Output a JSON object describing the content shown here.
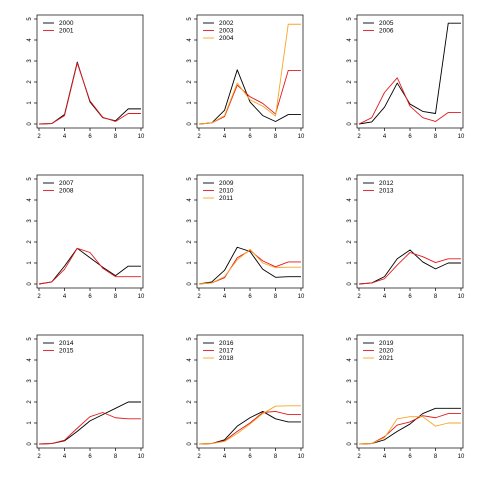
{
  "chart_data": [
    {
      "type": "line",
      "x": [
        2,
        3,
        4,
        5,
        6,
        7,
        8,
        9,
        10
      ],
      "ylim": [
        0,
        5
      ],
      "xticks": [
        2,
        4,
        6,
        8,
        10
      ],
      "yticks": [
        0,
        1,
        2,
        3,
        4,
        5
      ],
      "series": [
        {
          "name": "2000",
          "color": "#000000",
          "values": [
            0,
            0.02,
            0.45,
            2.95,
            1.05,
            0.3,
            0.15,
            0.72,
            0.72
          ]
        },
        {
          "name": "2001",
          "color": "#e41a1c",
          "values": [
            0,
            0.02,
            0.4,
            2.9,
            1.1,
            0.32,
            0.12,
            0.5,
            0.5
          ]
        }
      ]
    },
    {
      "type": "line",
      "x": [
        2,
        3,
        4,
        5,
        6,
        7,
        8,
        9,
        10
      ],
      "ylim": [
        0,
        5
      ],
      "xticks": [
        2,
        4,
        6,
        8,
        10
      ],
      "yticks": [
        0,
        1,
        2,
        3,
        4,
        5
      ],
      "series": [
        {
          "name": "2002",
          "color": "#000000",
          "values": [
            0,
            0.05,
            0.65,
            2.58,
            1.05,
            0.4,
            0.12,
            0.45,
            0.45
          ]
        },
        {
          "name": "2003",
          "color": "#e41a1c",
          "values": [
            0,
            0.05,
            0.35,
            1.85,
            1.3,
            0.98,
            0.48,
            2.55,
            2.55
          ]
        },
        {
          "name": "2004",
          "color": "#f5a623",
          "values": [
            0,
            0.05,
            0.4,
            1.95,
            1.15,
            0.85,
            0.38,
            4.75,
            4.75
          ]
        }
      ]
    },
    {
      "type": "line",
      "x": [
        2,
        3,
        4,
        5,
        6,
        7,
        8,
        9,
        10
      ],
      "ylim": [
        0,
        5
      ],
      "xticks": [
        2,
        4,
        6,
        8,
        10
      ],
      "yticks": [
        0,
        1,
        2,
        3,
        4,
        5
      ],
      "series": [
        {
          "name": "2005",
          "color": "#000000",
          "values": [
            0,
            0.1,
            0.8,
            1.95,
            0.95,
            0.6,
            0.5,
            4.8,
            4.8
          ]
        },
        {
          "name": "2006",
          "color": "#e41a1c",
          "values": [
            0,
            0.3,
            1.5,
            2.2,
            0.85,
            0.3,
            0.12,
            0.55,
            0.55
          ]
        }
      ]
    },
    {
      "type": "line",
      "x": [
        2,
        3,
        4,
        5,
        6,
        7,
        8,
        9,
        10
      ],
      "ylim": [
        0,
        5
      ],
      "xticks": [
        2,
        4,
        6,
        8,
        10
      ],
      "yticks": [
        0,
        1,
        2,
        3,
        4,
        5
      ],
      "series": [
        {
          "name": "2007",
          "color": "#000000",
          "values": [
            0,
            0.1,
            0.85,
            1.7,
            1.25,
            0.8,
            0.4,
            0.85,
            0.85
          ]
        },
        {
          "name": "2008",
          "color": "#e41a1c",
          "values": [
            0,
            0.1,
            0.7,
            1.7,
            1.5,
            0.75,
            0.35,
            0.35,
            0.35
          ]
        }
      ]
    },
    {
      "type": "line",
      "x": [
        2,
        3,
        4,
        5,
        6,
        7,
        8,
        9,
        10
      ],
      "ylim": [
        0,
        5
      ],
      "xticks": [
        2,
        4,
        6,
        8,
        10
      ],
      "yticks": [
        0,
        1,
        2,
        3,
        4,
        5
      ],
      "series": [
        {
          "name": "2009",
          "color": "#000000",
          "values": [
            0,
            0.1,
            0.65,
            1.75,
            1.55,
            0.7,
            0.32,
            0.35,
            0.35
          ]
        },
        {
          "name": "2010",
          "color": "#e41a1c",
          "values": [
            0,
            0.05,
            0.3,
            1.25,
            1.6,
            1.1,
            0.82,
            1.05,
            1.05
          ]
        },
        {
          "name": "2011",
          "color": "#f5a623",
          "values": [
            0,
            0.05,
            0.35,
            1.15,
            1.65,
            1.0,
            0.78,
            0.8,
            0.8
          ]
        }
      ]
    },
    {
      "type": "line",
      "x": [
        2,
        3,
        4,
        5,
        6,
        7,
        8,
        9,
        10
      ],
      "ylim": [
        0,
        5
      ],
      "xticks": [
        2,
        4,
        6,
        8,
        10
      ],
      "yticks": [
        0,
        1,
        2,
        3,
        4,
        5
      ],
      "series": [
        {
          "name": "2012",
          "color": "#000000",
          "values": [
            0,
            0.05,
            0.35,
            1.2,
            1.62,
            1.05,
            0.72,
            1.0,
            1.0
          ]
        },
        {
          "name": "2013",
          "color": "#e41a1c",
          "values": [
            0,
            0.05,
            0.25,
            0.9,
            1.5,
            1.3,
            1.02,
            1.2,
            1.2
          ]
        }
      ]
    },
    {
      "type": "line",
      "x": [
        2,
        3,
        4,
        5,
        6,
        7,
        8,
        9,
        10
      ],
      "ylim": [
        0,
        5
      ],
      "xticks": [
        2,
        4,
        6,
        8,
        10
      ],
      "yticks": [
        0,
        1,
        2,
        3,
        4,
        5
      ],
      "series": [
        {
          "name": "2014",
          "color": "#000000",
          "values": [
            0,
            0.02,
            0.15,
            0.6,
            1.1,
            1.4,
            1.7,
            2.0,
            2.0
          ]
        },
        {
          "name": "2015",
          "color": "#e41a1c",
          "values": [
            0,
            0.02,
            0.18,
            0.75,
            1.3,
            1.5,
            1.25,
            1.2,
            1.2
          ]
        }
      ]
    },
    {
      "type": "line",
      "x": [
        2,
        3,
        4,
        5,
        6,
        7,
        8,
        9,
        10
      ],
      "ylim": [
        0,
        5
      ],
      "xticks": [
        2,
        4,
        6,
        8,
        10
      ],
      "yticks": [
        0,
        1,
        2,
        3,
        4,
        5
      ],
      "series": [
        {
          "name": "2016",
          "color": "#000000",
          "values": [
            0,
            0.02,
            0.2,
            0.85,
            1.25,
            1.55,
            1.2,
            1.05,
            1.05
          ]
        },
        {
          "name": "2017",
          "color": "#e41a1c",
          "values": [
            0,
            0.02,
            0.15,
            0.6,
            1.0,
            1.5,
            1.55,
            1.4,
            1.4
          ]
        },
        {
          "name": "2018",
          "color": "#f5a623",
          "values": [
            0,
            0.02,
            0.12,
            0.5,
            0.95,
            1.45,
            1.8,
            1.82,
            1.82
          ]
        }
      ]
    },
    {
      "type": "line",
      "x": [
        2,
        3,
        4,
        5,
        6,
        7,
        8,
        9,
        10
      ],
      "ylim": [
        0,
        5
      ],
      "xticks": [
        2,
        4,
        6,
        8,
        10
      ],
      "yticks": [
        0,
        1,
        2,
        3,
        4,
        5
      ],
      "series": [
        {
          "name": "2019",
          "color": "#000000",
          "values": [
            0,
            0.02,
            0.2,
            0.6,
            0.95,
            1.45,
            1.7,
            1.7,
            1.7
          ]
        },
        {
          "name": "2020",
          "color": "#e41a1c",
          "values": [
            0,
            0.02,
            0.35,
            0.9,
            1.05,
            1.35,
            1.25,
            1.45,
            1.45
          ]
        },
        {
          "name": "2021",
          "color": "#f5a623",
          "values": [
            0,
            0.02,
            0.3,
            1.2,
            1.3,
            1.3,
            0.85,
            1.0,
            1.0
          ]
        }
      ]
    }
  ]
}
